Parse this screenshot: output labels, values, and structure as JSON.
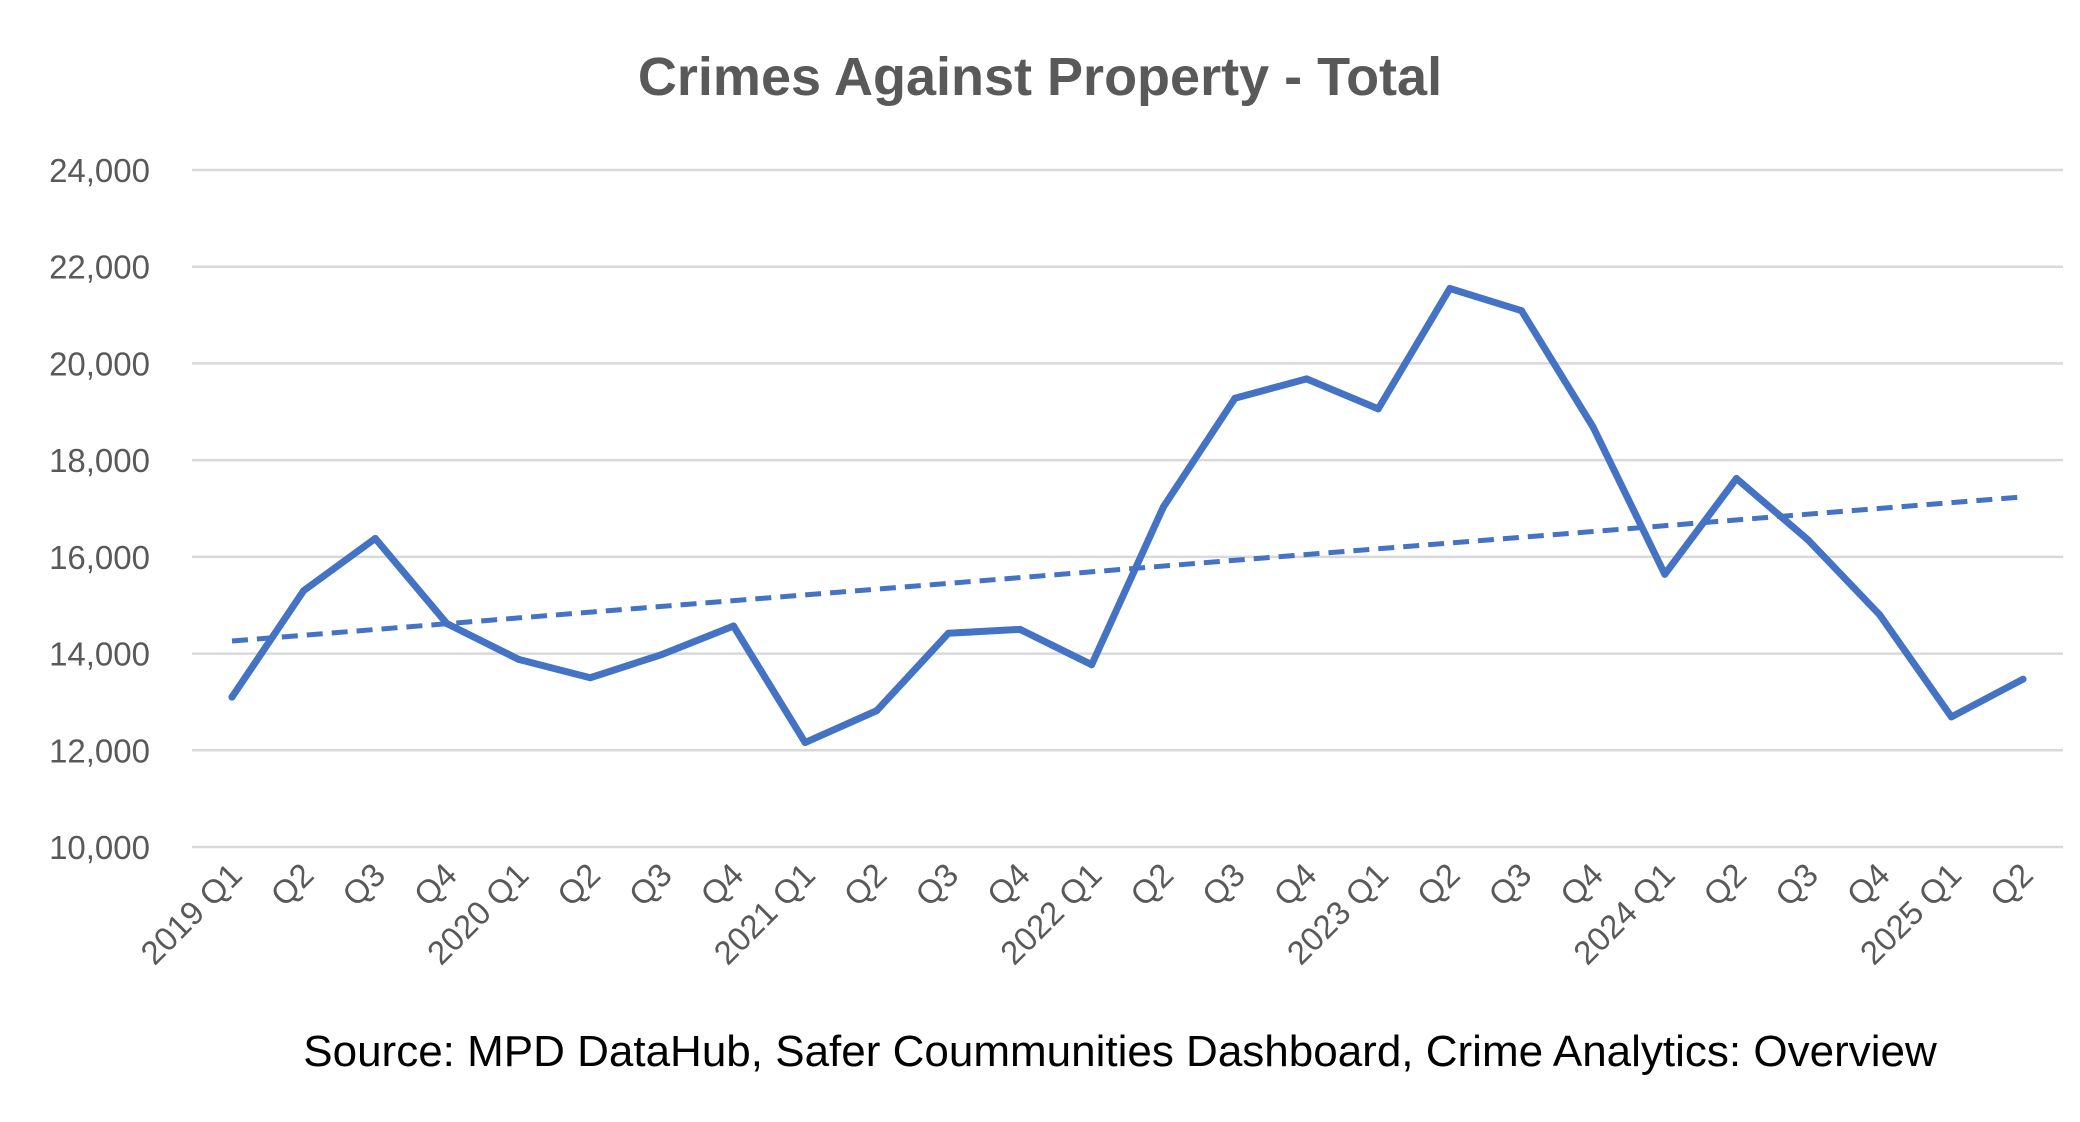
{
  "chart_data": {
    "type": "line",
    "title": "Crimes Against Property - Total",
    "source": "Source: MPD DataHub, Safer Coummunities Dashboard,  Crime Analytics: Overview",
    "categories": [
      "2019 Q1",
      "Q2",
      "Q3",
      "Q4",
      "2020 Q1",
      "Q2",
      "Q3",
      "Q4",
      "2021 Q1",
      "Q2",
      "Q3",
      "Q4",
      "2022 Q1",
      "Q2",
      "Q3",
      "Q4",
      "2023 Q1",
      "Q2",
      "Q3",
      "Q4",
      "2024 Q1",
      "Q2",
      "Q3",
      "Q4",
      "2025 Q1",
      "Q2"
    ],
    "series": [
      {
        "values": [
          13100,
          15300,
          16380,
          14620,
          13880,
          13500,
          13980,
          14570,
          12160,
          12820,
          14420,
          14500,
          13770,
          17030,
          19280,
          19680,
          19060,
          21550,
          21090,
          18680,
          15640,
          17620,
          16350,
          14800,
          12690,
          13470
        ],
        "color": "#4472C4"
      }
    ],
    "trendline": {
      "type": "linear",
      "start": 14260,
      "end": 17240,
      "color": "#4472C4",
      "style": "dashed"
    },
    "yticks": [
      "10,000",
      "12,000",
      "14,000",
      "16,000",
      "18,000",
      "20,000",
      "22,000",
      "24,000"
    ],
    "ylim": [
      10000,
      24000
    ],
    "grid": true,
    "gridColor": "#D9D9D9"
  }
}
